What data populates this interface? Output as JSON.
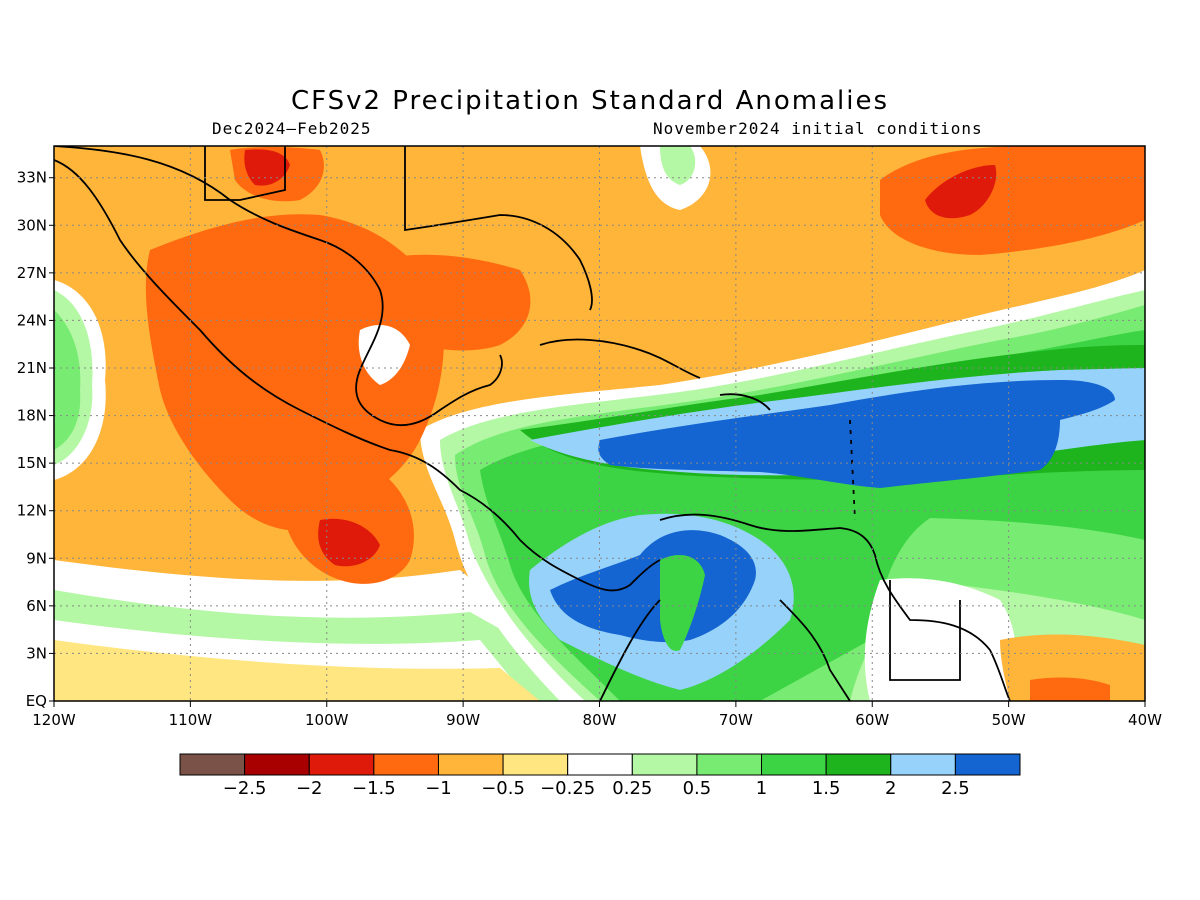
{
  "title": "CFSv2 Precipitation Standard Anomalies",
  "subtitle_left": "Dec2024–Feb2025",
  "subtitle_right": "November2024 initial conditions",
  "lon_labels": [
    "120W",
    "110W",
    "100W",
    "90W",
    "80W",
    "70W",
    "60W",
    "50W",
    "40W"
  ],
  "lat_labels": [
    "EQ",
    "3N",
    "6N",
    "9N",
    "12N",
    "15N",
    "18N",
    "21N",
    "24N",
    "27N",
    "30N",
    "33N"
  ],
  "colorbar": {
    "colors": [
      "#7a5248",
      "#a80000",
      "#e01a0a",
      "#ff6a10",
      "#ffb43a",
      "#ffe680",
      "#ffffff",
      "#b4f7a4",
      "#78eb72",
      "#3cd444",
      "#1eb41e",
      "#96d2fa",
      "#1464d2"
    ],
    "labels": [
      "−2.5",
      "−2",
      "−1.5",
      "−1",
      "−0.5",
      "−0.25",
      "0.25",
      "0.5",
      "1",
      "1.5",
      "2",
      "2.5"
    ]
  },
  "palette": {
    "wet_light": "#b4f7a4",
    "wet": "#78eb72",
    "wet_mid": "#3cd444",
    "wet_dark": "#1eb41e",
    "wet_blue_light": "#96d2fa",
    "wet_blue": "#1464d2",
    "dry_light": "#ffe680",
    "dry": "#ffb43a",
    "dry_mid": "#ff6a10",
    "dry_dark": "#e01a0a",
    "neutral": "#ffffff",
    "land_line": "#000000"
  }
}
